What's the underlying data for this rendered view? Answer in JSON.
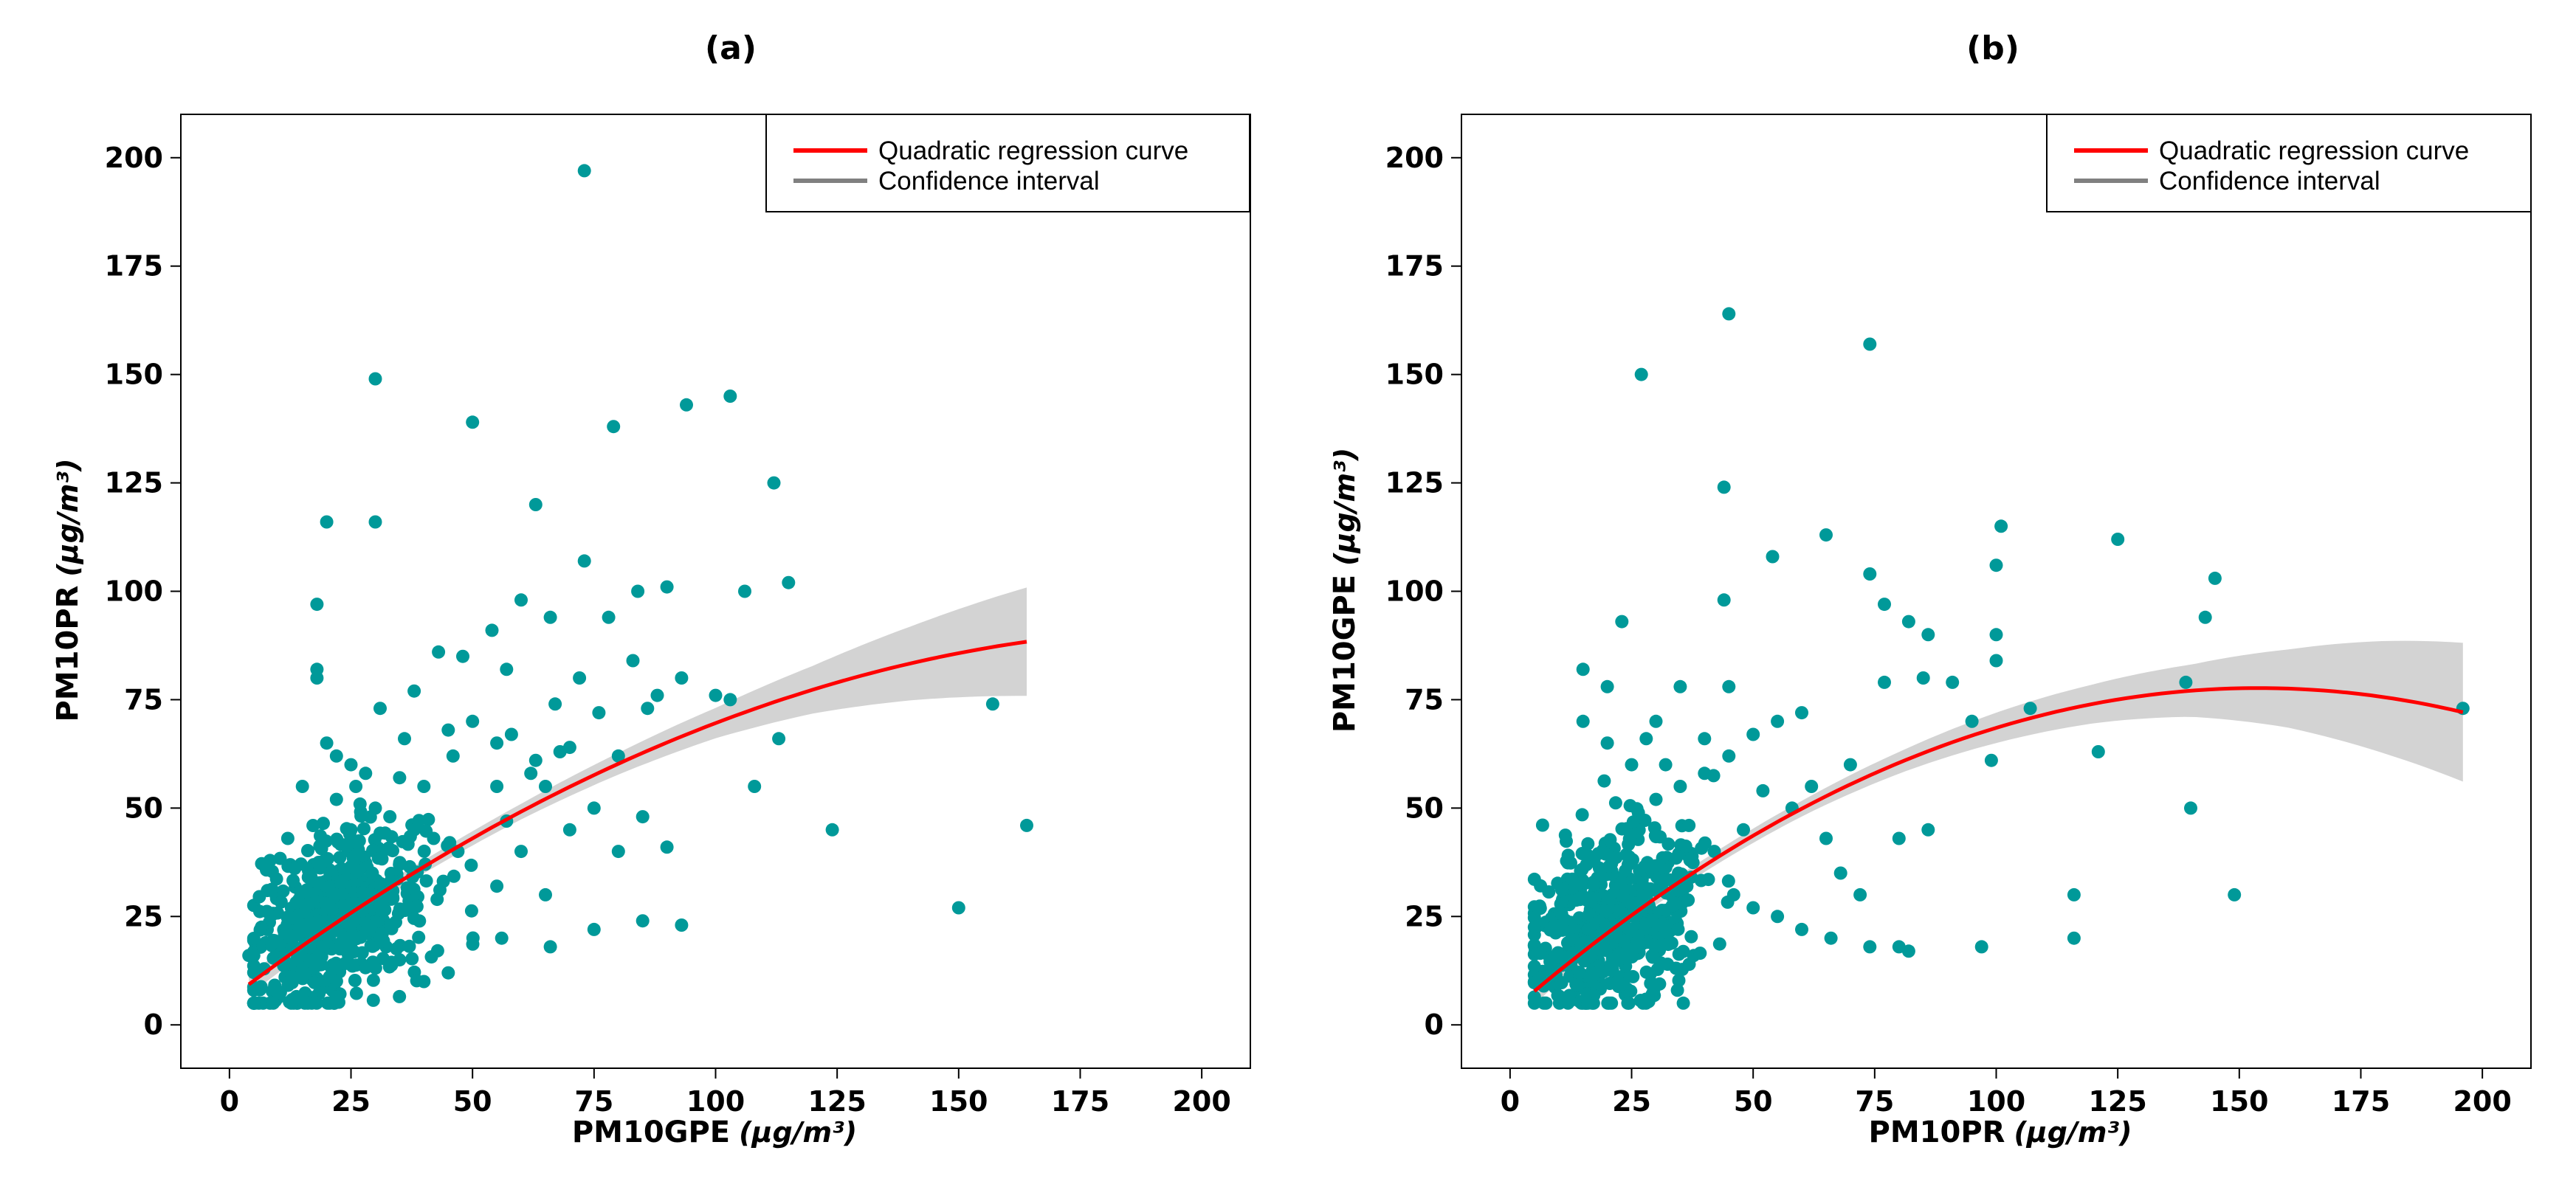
{
  "chart_data": [
    {
      "type": "scatter",
      "title": "(a)",
      "xlabel": "PM10GPE",
      "ylabel": "PM10PR",
      "unit_label": "(μg/m³)",
      "xlim": [
        -10,
        210
      ],
      "ylim": [
        -10,
        210
      ],
      "xticks": [
        0,
        25,
        50,
        75,
        100,
        125,
        150,
        175,
        200
      ],
      "yticks": [
        0,
        25,
        50,
        75,
        100,
        125,
        150,
        175,
        200
      ],
      "tick_labels": [
        "0",
        "25",
        "50",
        "75",
        "100",
        "125",
        "150",
        "175",
        "200"
      ],
      "legend": {
        "placement": "top-right",
        "entries": [
          {
            "label": "Quadratic regression curve",
            "color": "#ff0000"
          },
          {
            "label": "Confidence interval",
            "color": "#808080"
          }
        ]
      },
      "point_color": "#009999",
      "curve_color": "#ff0000",
      "ci_color": "#d3d3d3",
      "points": [
        [
          73,
          197
        ],
        [
          30,
          149
        ],
        [
          50,
          139
        ],
        [
          79,
          138
        ],
        [
          94,
          143
        ],
        [
          103,
          145
        ],
        [
          112,
          125
        ],
        [
          20,
          116
        ],
        [
          30,
          116
        ],
        [
          63,
          120
        ],
        [
          73,
          107
        ],
        [
          115,
          102
        ],
        [
          90,
          101
        ],
        [
          106,
          100
        ],
        [
          84,
          100
        ],
        [
          60,
          98
        ],
        [
          18,
          97
        ],
        [
          54,
          91
        ],
        [
          78,
          94
        ],
        [
          66,
          94
        ],
        [
          43,
          86
        ],
        [
          48,
          85
        ],
        [
          83,
          84
        ],
        [
          93,
          80
        ],
        [
          72,
          80
        ],
        [
          57,
          82
        ],
        [
          38,
          77
        ],
        [
          88,
          76
        ],
        [
          100,
          76
        ],
        [
          103,
          75
        ],
        [
          86,
          73
        ],
        [
          67,
          74
        ],
        [
          31,
          73
        ],
        [
          76,
          72
        ],
        [
          45,
          68
        ],
        [
          113,
          66
        ],
        [
          58,
          67
        ],
        [
          70,
          64
        ],
        [
          80,
          62
        ],
        [
          63,
          61
        ],
        [
          108,
          55
        ],
        [
          35,
          57
        ],
        [
          40,
          55
        ],
        [
          55,
          55
        ],
        [
          65,
          55
        ],
        [
          75,
          50
        ],
        [
          85,
          48
        ],
        [
          70,
          45
        ],
        [
          124,
          45
        ],
        [
          164,
          46
        ],
        [
          157,
          74
        ],
        [
          60,
          40
        ],
        [
          80,
          40
        ],
        [
          90,
          41
        ],
        [
          55,
          32
        ],
        [
          65,
          30
        ],
        [
          75,
          22
        ],
        [
          85,
          24
        ],
        [
          93,
          23
        ],
        [
          150,
          27
        ],
        [
          56,
          20
        ],
        [
          66,
          18
        ],
        [
          40,
          10
        ],
        [
          45,
          12
        ],
        [
          35,
          15
        ],
        [
          18,
          80
        ],
        [
          18,
          82
        ],
        [
          20,
          65
        ],
        [
          22,
          62
        ],
        [
          25,
          60
        ],
        [
          28,
          58
        ],
        [
          15,
          55
        ],
        [
          22,
          52
        ],
        [
          30,
          50
        ],
        [
          33,
          48
        ],
        [
          38,
          45
        ],
        [
          42,
          43
        ],
        [
          47,
          40
        ],
        [
          25,
          45
        ],
        [
          12,
          43
        ],
        [
          4,
          16
        ],
        [
          9,
          19
        ],
        [
          50,
          70
        ],
        [
          55,
          65
        ],
        [
          57,
          47
        ],
        [
          62,
          58
        ],
        [
          68,
          63
        ],
        [
          46,
          62
        ],
        [
          36,
          66
        ],
        [
          26,
          55
        ]
      ],
      "cluster": {
        "cx": 22,
        "cy": 24,
        "sx": 9,
        "sy": 10,
        "n": 560,
        "seed": 7
      },
      "curve": {
        "coef": [
          6.0,
          0.845,
          -0.00209
        ],
        "x_range": [
          4,
          164
        ]
      },
      "ci": {
        "x": [
          4,
          20,
          40,
          60,
          80,
          100,
          120,
          140,
          164
        ],
        "half": [
          2.5,
          1.8,
          1.5,
          1.8,
          2.5,
          3.5,
          5.5,
          8.5,
          12.5
        ]
      }
    },
    {
      "type": "scatter",
      "title": "(b)",
      "xlabel": "PM10PR",
      "ylabel": "PM10GPE",
      "unit_label": "(μg/m³)",
      "xlim": [
        -10,
        210
      ],
      "ylim": [
        -10,
        210
      ],
      "xticks": [
        0,
        25,
        50,
        75,
        100,
        125,
        150,
        175,
        200
      ],
      "yticks": [
        0,
        25,
        50,
        75,
        100,
        125,
        150,
        175,
        200
      ],
      "tick_labels": [
        "0",
        "25",
        "50",
        "75",
        "100",
        "125",
        "150",
        "175",
        "200"
      ],
      "legend": {
        "placement": "top-right",
        "entries": [
          {
            "label": "Quadratic regression curve",
            "color": "#ff0000"
          },
          {
            "label": "Confidence interval",
            "color": "#808080"
          }
        ]
      },
      "point_color": "#009999",
      "curve_color": "#ff0000",
      "ci_color": "#d3d3d3",
      "points": [
        [
          45,
          164
        ],
        [
          74,
          157
        ],
        [
          27,
          150
        ],
        [
          44,
          124
        ],
        [
          125,
          112
        ],
        [
          101,
          115
        ],
        [
          65,
          113
        ],
        [
          145,
          103
        ],
        [
          100,
          106
        ],
        [
          54,
          108
        ],
        [
          74,
          104
        ],
        [
          23,
          93
        ],
        [
          77,
          97
        ],
        [
          44,
          98
        ],
        [
          82,
          93
        ],
        [
          86,
          90
        ],
        [
          100,
          90
        ],
        [
          85,
          80
        ],
        [
          91,
          79
        ],
        [
          77,
          79
        ],
        [
          139,
          79
        ],
        [
          143,
          94
        ],
        [
          107,
          73
        ],
        [
          121,
          63
        ],
        [
          100,
          84
        ],
        [
          95,
          70
        ],
        [
          99,
          61
        ],
        [
          140,
          50
        ],
        [
          86,
          45
        ],
        [
          80,
          43
        ],
        [
          65,
          43
        ],
        [
          68,
          35
        ],
        [
          72,
          30
        ],
        [
          116,
          30
        ],
        [
          149,
          30
        ],
        [
          116,
          20
        ],
        [
          97,
          18
        ],
        [
          80,
          18
        ],
        [
          82,
          17
        ],
        [
          74,
          18
        ],
        [
          66,
          20
        ],
        [
          60,
          22
        ],
        [
          55,
          25
        ],
        [
          50,
          27
        ],
        [
          46,
          30
        ],
        [
          16,
          5
        ],
        [
          30,
          52
        ],
        [
          35,
          55
        ],
        [
          40,
          58
        ],
        [
          45,
          62
        ],
        [
          50,
          67
        ],
        [
          55,
          70
        ],
        [
          60,
          72
        ],
        [
          25,
          60
        ],
        [
          20,
          65
        ],
        [
          15,
          70
        ],
        [
          30,
          70
        ],
        [
          40,
          66
        ],
        [
          35,
          78
        ],
        [
          196,
          73
        ],
        [
          70,
          60
        ],
        [
          62,
          55
        ],
        [
          58,
          50
        ],
        [
          48,
          45
        ],
        [
          42,
          40
        ],
        [
          37,
          38
        ],
        [
          32,
          60
        ],
        [
          28,
          66
        ],
        [
          52,
          54
        ],
        [
          15,
          82
        ],
        [
          20,
          78
        ],
        [
          45,
          78
        ]
      ],
      "cluster": {
        "cx": 22,
        "cy": 24,
        "sx": 9,
        "sy": 10,
        "n": 560,
        "seed": 13
      },
      "curve": {
        "coef": [
          3.0,
          0.97,
          -0.00315
        ],
        "x_range": [
          5,
          196
        ]
      },
      "ci": {
        "x": [
          5,
          20,
          40,
          60,
          80,
          100,
          120,
          140,
          160,
          180,
          196
        ],
        "half": [
          3.0,
          1.8,
          1.5,
          1.8,
          2.5,
          3.5,
          4.5,
          6.0,
          9.0,
          13.0,
          16.0
        ]
      }
    }
  ]
}
